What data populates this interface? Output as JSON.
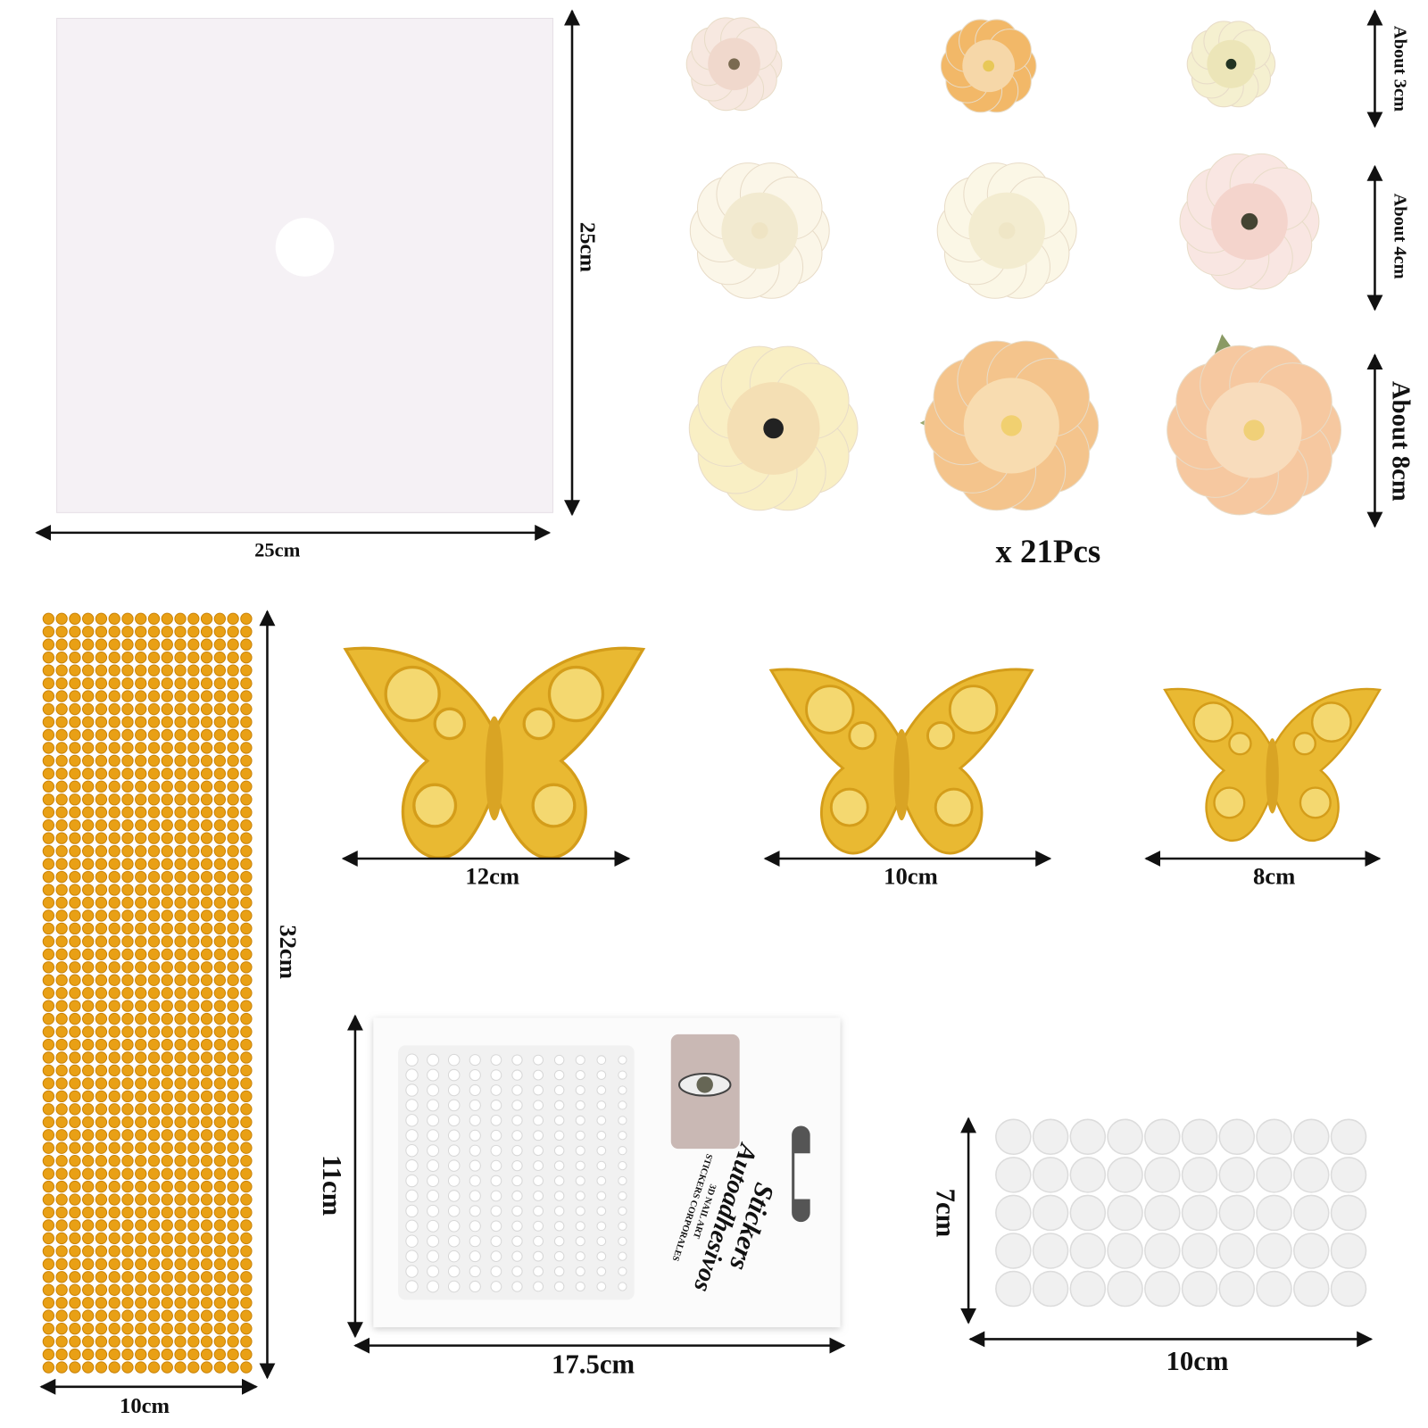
{
  "board": {
    "height": "25cm",
    "width": "25cm"
  },
  "flowers": {
    "sizes": [
      "About 3cm",
      "About 4cm",
      "About 8cm"
    ],
    "count": "x 21Pcs"
  },
  "rhinestones": {
    "height": "32cm",
    "width": "10cm"
  },
  "butterflies": [
    {
      "width": "12cm"
    },
    {
      "width": "10cm"
    },
    {
      "width": "8cm"
    }
  ],
  "pearls": {
    "height": "11cm",
    "width": "17.5cm",
    "package": {
      "title": "Stickers",
      "subtitle": "Autoadhesivos",
      "line1": "3D NAIL ART",
      "line2": "STICKERS CORPORALES"
    }
  },
  "dots": {
    "height": "7cm",
    "width": "10cm"
  }
}
